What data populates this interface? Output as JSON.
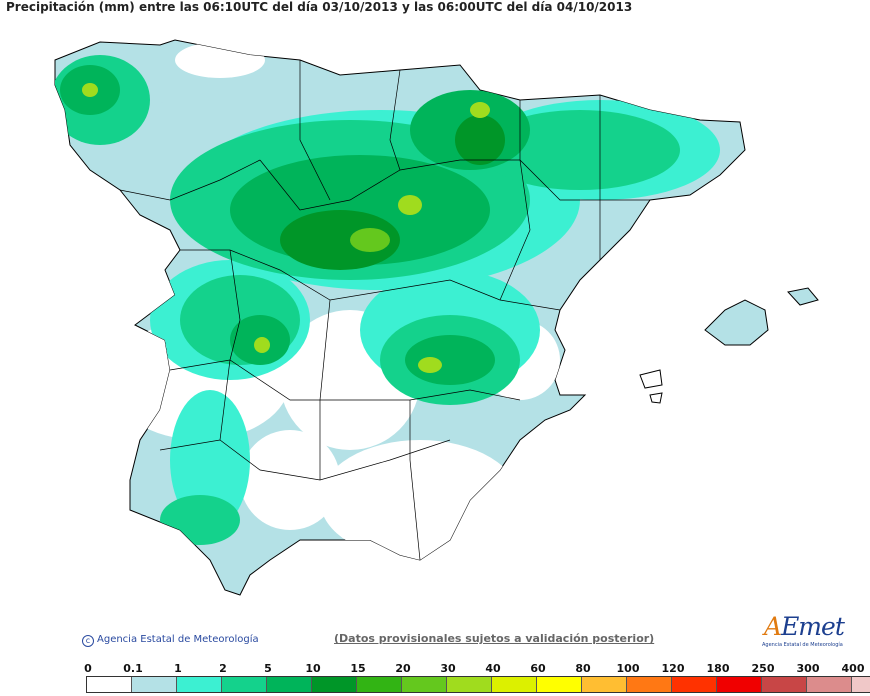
{
  "map": {
    "title": "Precipitación (mm) entre las 06:10UTC del día 03/10/2013 y las 06:00UTC del día 04/10/2013",
    "credit": "Agencia Estatal de Meteorología",
    "disclaimer": "(Datos provisionales sujetos a validación posterior)",
    "logo_text_first": "A",
    "logo_text_rest": "Emet",
    "logo_sub": "Agencia Estatal de Meteorología"
  },
  "legend": {
    "ticks": [
      "0",
      "0.1",
      "1",
      "2",
      "5",
      "10",
      "15",
      "20",
      "30",
      "40",
      "60",
      "80",
      "100",
      "120",
      "180",
      "250",
      "300",
      "400"
    ],
    "colors": [
      "#ffffff",
      "#b4e1e6",
      "#3cf0d2",
      "#14d28c",
      "#00b45a",
      "#009628",
      "#32b414",
      "#64c81e",
      "#a0dc1e",
      "#dcf000",
      "#ffff00",
      "#ffbe32",
      "#ff7814",
      "#ff3200",
      "#f00000",
      "#c84646",
      "#dc8c8c",
      "#f0c8c8"
    ]
  }
}
